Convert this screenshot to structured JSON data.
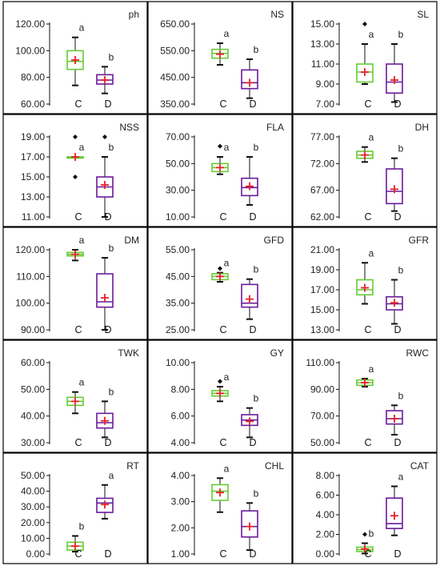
{
  "colors": {
    "C": "#66cc33",
    "D": "#6a1b9a",
    "mean": "#e8202a",
    "whisker": "#111111"
  },
  "categories": [
    "C",
    "D"
  ],
  "chart_data": [
    {
      "type": "box",
      "title": "ph",
      "yticks": [
        "60.00",
        "80.00",
        "100.00",
        "120.00"
      ],
      "ylim": [
        60,
        120
      ],
      "boxes": [
        {
          "group": "C",
          "min": 74,
          "q1": 86,
          "median": 92,
          "q3": 100,
          "max": 110,
          "mean": 93,
          "outliers": [],
          "sig": "a"
        },
        {
          "group": "D",
          "min": 68,
          "q1": 75,
          "median": 78,
          "q3": 82,
          "max": 88,
          "mean": 78,
          "outliers": [],
          "sig": "b"
        }
      ]
    },
    {
      "type": "box",
      "title": "NS",
      "yticks": [
        "350.00",
        "450.00",
        "550.00",
        "650.00"
      ],
      "ylim": [
        350,
        650
      ],
      "boxes": [
        {
          "group": "C",
          "min": 497,
          "q1": 522,
          "median": 540,
          "q3": 555,
          "max": 578,
          "mean": 537,
          "outliers": [],
          "sig": "a"
        },
        {
          "group": "D",
          "min": 372,
          "q1": 408,
          "median": 430,
          "q3": 478,
          "max": 518,
          "mean": 430,
          "outliers": [],
          "sig": "b"
        }
      ]
    },
    {
      "type": "box",
      "title": "SL",
      "yticks": [
        "7.00",
        "9.00",
        "11.00",
        "13.00",
        "15.00"
      ],
      "ylim": [
        7,
        15
      ],
      "boxes": [
        {
          "group": "C",
          "min": 9.0,
          "q1": 9.2,
          "median": 10.2,
          "q3": 11.0,
          "max": 13.0,
          "mean": 10.2,
          "outliers": [
            15.0
          ],
          "sig": "a"
        },
        {
          "group": "D",
          "min": 7.2,
          "q1": 8.1,
          "median": 9.2,
          "q3": 11.0,
          "max": 13.0,
          "mean": 9.4,
          "outliers": [],
          "sig": "b"
        }
      ]
    },
    {
      "type": "box",
      "title": "NSS",
      "yticks": [
        "11.00",
        "13.00",
        "15.00",
        "17.00",
        "19.00"
      ],
      "ylim": [
        11,
        19
      ],
      "boxes": [
        {
          "group": "C",
          "min": 17.0,
          "q1": 17.0,
          "median": 17.0,
          "q3": 17.0,
          "max": 17.0,
          "mean": 17.0,
          "outliers": [
            19.0,
            15.0
          ],
          "sig": "a"
        },
        {
          "group": "D",
          "min": 11.0,
          "q1": 13.0,
          "median": 14.0,
          "q3": 15.0,
          "max": 17.0,
          "mean": 14.2,
          "outliers": [
            19.0
          ],
          "sig": "b"
        }
      ]
    },
    {
      "type": "box",
      "title": "FLA",
      "yticks": [
        "10.00",
        "30.00",
        "50.00",
        "70.00"
      ],
      "ylim": [
        10,
        70
      ],
      "boxes": [
        {
          "group": "C",
          "min": 42,
          "q1": 44,
          "median": 47,
          "q3": 50,
          "max": 55,
          "mean": 47,
          "outliers": [
            63
          ],
          "sig": "a"
        },
        {
          "group": "D",
          "min": 19,
          "q1": 26,
          "median": 32,
          "q3": 39,
          "max": 55,
          "mean": 33,
          "outliers": [],
          "sig": "b"
        }
      ]
    },
    {
      "type": "box",
      "title": "DH",
      "yticks": [
        "62.00",
        "67.00",
        "72.00",
        "77.00"
      ],
      "ylim": [
        62,
        77
      ],
      "boxes": [
        {
          "group": "C",
          "min": 72.3,
          "q1": 73.0,
          "median": 73.6,
          "q3": 74.3,
          "max": 75.1,
          "mean": 73.6,
          "outliers": [],
          "sig": "a"
        },
        {
          "group": "D",
          "min": 63.1,
          "q1": 64.5,
          "median": 66.8,
          "q3": 71.0,
          "max": 73.0,
          "mean": 67.2,
          "outliers": [],
          "sig": "b"
        }
      ]
    },
    {
      "type": "box",
      "title": "DM",
      "yticks": [
        "90.00",
        "100.00",
        "110.00",
        "120.00"
      ],
      "ylim": [
        90,
        120
      ],
      "boxes": [
        {
          "group": "C",
          "min": 116,
          "q1": 117.7,
          "median": 118.3,
          "q3": 119.0,
          "max": 120,
          "mean": 118.3,
          "outliers": [],
          "sig": "a"
        },
        {
          "group": "D",
          "min": 90,
          "q1": 98.5,
          "median": 100.5,
          "q3": 111,
          "max": 117,
          "mean": 102,
          "outliers": [],
          "sig": "b"
        }
      ]
    },
    {
      "type": "box",
      "title": "GFD",
      "yticks": [
        "25.00",
        "35.00",
        "45.00",
        "55.00"
      ],
      "ylim": [
        25,
        55
      ],
      "boxes": [
        {
          "group": "C",
          "min": 43.0,
          "q1": 43.8,
          "median": 45.0,
          "q3": 46.0,
          "max": 46.4,
          "mean": 45.0,
          "outliers": [
            48.0
          ],
          "sig": "a"
        },
        {
          "group": "D",
          "min": 29.0,
          "q1": 33.5,
          "median": 35.0,
          "q3": 42.0,
          "max": 44.0,
          "mean": 36.5,
          "outliers": [],
          "sig": "b"
        }
      ]
    },
    {
      "type": "box",
      "title": "GFR",
      "yticks": [
        "13.00",
        "15.00",
        "17.00",
        "19.00",
        "21.00"
      ],
      "ylim": [
        13,
        21
      ],
      "boxes": [
        {
          "group": "C",
          "min": 15.6,
          "q1": 16.5,
          "median": 17.0,
          "q3": 18.0,
          "max": 19.7,
          "mean": 17.2,
          "outliers": [],
          "sig": "a"
        },
        {
          "group": "D",
          "min": 13.6,
          "q1": 15.0,
          "median": 15.6,
          "q3": 16.3,
          "max": 18.0,
          "mean": 15.7,
          "outliers": [],
          "sig": "b"
        }
      ]
    },
    {
      "type": "box",
      "title": "TWK",
      "yticks": [
        "30.00",
        "40.00",
        "50.00",
        "60.00"
      ],
      "ylim": [
        30,
        60
      ],
      "boxes": [
        {
          "group": "C",
          "min": 41.0,
          "q1": 44.0,
          "median": 45.5,
          "q3": 47.0,
          "max": 49.0,
          "mean": 45.5,
          "outliers": [],
          "sig": "a"
        },
        {
          "group": "D",
          "min": 32.0,
          "q1": 35.5,
          "median": 37.5,
          "q3": 41.0,
          "max": 45.5,
          "mean": 38.2,
          "outliers": [],
          "sig": "b"
        }
      ]
    },
    {
      "type": "box",
      "title": "GY",
      "yticks": [
        "4.00",
        "6.00",
        "8.00",
        "10.00"
      ],
      "ylim": [
        4,
        10
      ],
      "boxes": [
        {
          "group": "C",
          "min": 7.1,
          "q1": 7.5,
          "median": 7.7,
          "q3": 7.9,
          "max": 8.2,
          "mean": 7.7,
          "outliers": [
            8.6
          ],
          "sig": "a"
        },
        {
          "group": "D",
          "min": 4.4,
          "q1": 5.3,
          "median": 5.7,
          "q3": 6.1,
          "max": 6.6,
          "mean": 5.6,
          "outliers": [],
          "sig": "b"
        }
      ]
    },
    {
      "type": "box",
      "title": "RWC",
      "yticks": [
        "50.00",
        "70.00",
        "90.00",
        "110.00"
      ],
      "ylim": [
        50,
        110
      ],
      "boxes": [
        {
          "group": "C",
          "min": 92,
          "q1": 93,
          "median": 95,
          "q3": 97,
          "max": 98,
          "mean": 95,
          "outliers": [],
          "sig": "a"
        },
        {
          "group": "D",
          "min": 56,
          "q1": 64,
          "median": 68,
          "q3": 74,
          "max": 78,
          "mean": 68,
          "outliers": [],
          "sig": "b"
        }
      ]
    },
    {
      "type": "box",
      "title": "RT",
      "yticks": [
        "0.00",
        "10.00",
        "20.00",
        "30.00",
        "40.00",
        "50.00"
      ],
      "ylim": [
        0,
        50
      ],
      "boxes": [
        {
          "group": "C",
          "min": 1.5,
          "q1": 2.5,
          "median": 5.0,
          "q3": 7.5,
          "max": 11.5,
          "mean": 5.0,
          "outliers": [],
          "sig": "b"
        },
        {
          "group": "D",
          "min": 22.5,
          "q1": 26.5,
          "median": 32.5,
          "q3": 35.5,
          "max": 44.0,
          "mean": 31.5,
          "outliers": [],
          "sig": "a"
        }
      ]
    },
    {
      "type": "box",
      "title": "CHL",
      "yticks": [
        "1.00",
        "2.00",
        "3.00",
        "4.00"
      ],
      "ylim": [
        1,
        4
      ],
      "boxes": [
        {
          "group": "C",
          "min": 2.6,
          "q1": 3.05,
          "median": 3.4,
          "q3": 3.65,
          "max": 3.9,
          "mean": 3.35,
          "outliers": [],
          "sig": "a"
        },
        {
          "group": "D",
          "min": 1.15,
          "q1": 1.65,
          "median": 2.05,
          "q3": 2.65,
          "max": 2.95,
          "mean": 2.05,
          "outliers": [],
          "sig": "b"
        }
      ]
    },
    {
      "type": "box",
      "title": "CAT",
      "yticks": [
        "0.00",
        "2.00",
        "4.00",
        "6.00",
        "8.00"
      ],
      "ylim": [
        0,
        8
      ],
      "boxes": [
        {
          "group": "C",
          "min": 0.05,
          "q1": 0.25,
          "median": 0.45,
          "q3": 0.7,
          "max": 1.1,
          "mean": 0.5,
          "outliers": [
            2.0
          ],
          "sig": "b"
        },
        {
          "group": "D",
          "min": 1.9,
          "q1": 2.6,
          "median": 3.1,
          "q3": 5.7,
          "max": 6.9,
          "mean": 3.9,
          "outliers": [],
          "sig": "a"
        }
      ]
    }
  ]
}
